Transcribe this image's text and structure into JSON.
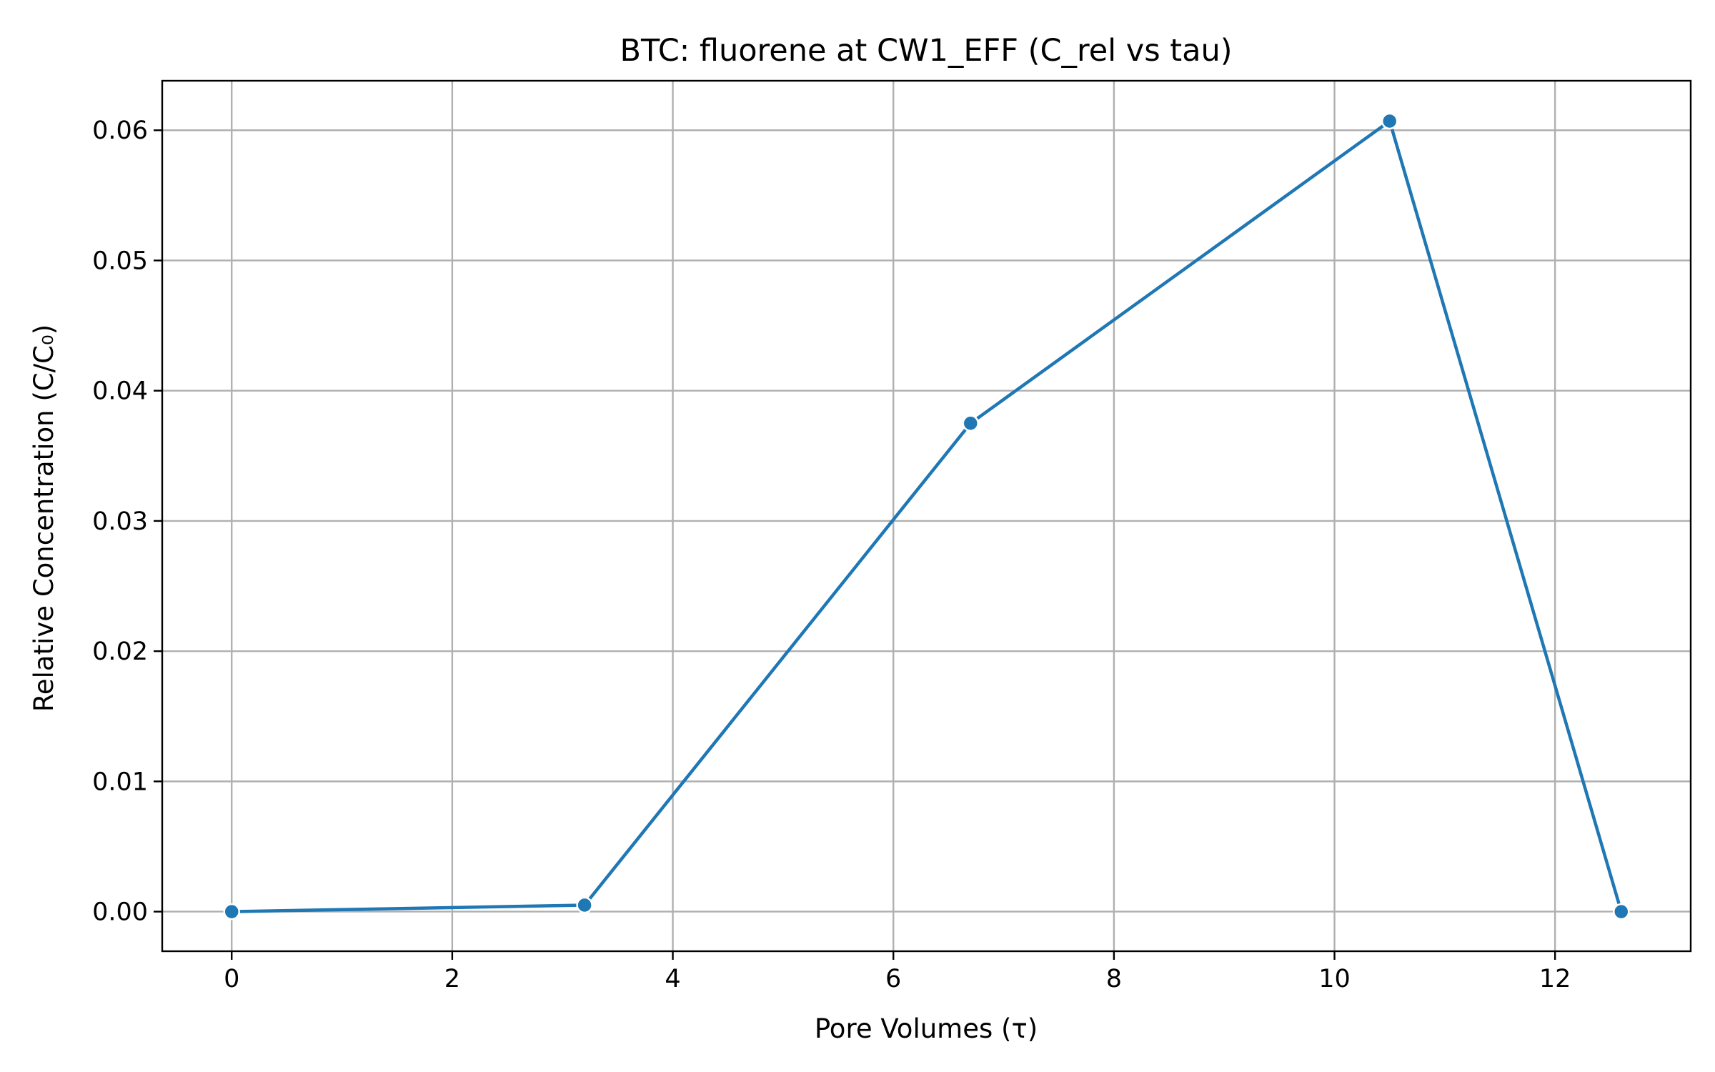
{
  "chart_data": {
    "type": "line",
    "title": "BTC: fluorene at CW1_EFF (C_rel vs tau)",
    "xlabel": "Pore Volumes (τ)",
    "ylabel": "Relative Concentration (C/C₀)",
    "xlim": [
      -0.63,
      13.23
    ],
    "ylim": [
      -0.00304,
      0.0638
    ],
    "xticks": [
      0,
      2,
      4,
      6,
      8,
      10,
      12
    ],
    "xtick_labels": [
      "0",
      "2",
      "4",
      "6",
      "8",
      "10",
      "12"
    ],
    "yticks": [
      0.0,
      0.01,
      0.02,
      0.03,
      0.04,
      0.05,
      0.06
    ],
    "ytick_labels": [
      "0.00",
      "0.01",
      "0.02",
      "0.03",
      "0.04",
      "0.05",
      "0.06"
    ],
    "grid": true,
    "series": [
      {
        "color": "#1f77b4",
        "marker": "circle",
        "x": [
          0,
          3.2,
          6.7,
          10.5,
          12.6
        ],
        "y": [
          0.0,
          0.0005,
          0.0375,
          0.0607,
          0.0
        ]
      }
    ]
  }
}
